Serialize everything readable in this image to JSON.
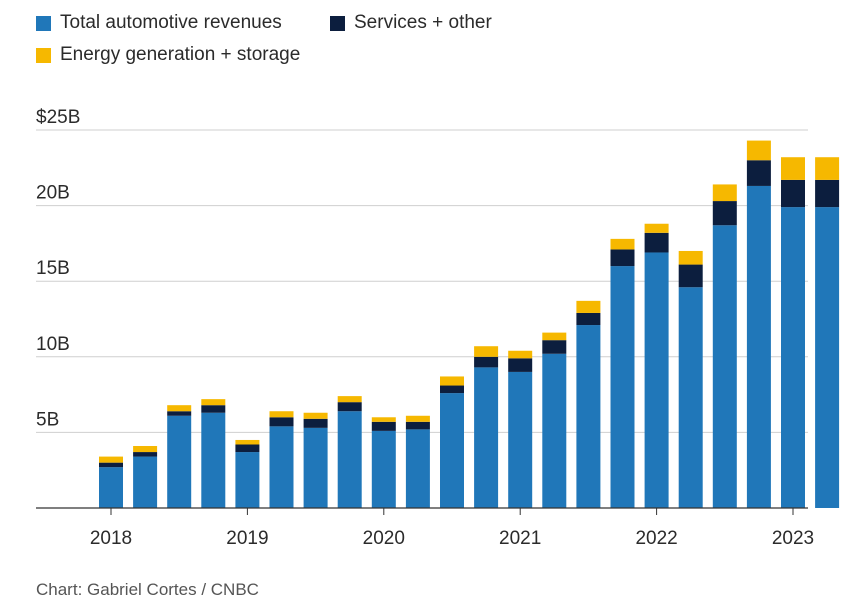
{
  "legend": [
    {
      "label": "Total automotive revenues",
      "color": "#2077b9"
    },
    {
      "label": "Services + other",
      "color": "#0c1e3e"
    },
    {
      "label": "Energy generation + storage",
      "color": "#f6b800"
    }
  ],
  "source": "Chart: Gabriel Cortes / CNBC",
  "chart_data": {
    "type": "bar",
    "stacked": true,
    "ylim": [
      0,
      25
    ],
    "yticks": [
      {
        "value": 5,
        "label": "5B"
      },
      {
        "value": 10,
        "label": "10B"
      },
      {
        "value": 15,
        "label": "15B"
      },
      {
        "value": 20,
        "label": "20B"
      },
      {
        "value": 25,
        "label": "$25B"
      }
    ],
    "xtick_labels": [
      {
        "index": 0,
        "label": "2018"
      },
      {
        "index": 4,
        "label": "2019"
      },
      {
        "index": 8,
        "label": "2020"
      },
      {
        "index": 12,
        "label": "2021"
      },
      {
        "index": 16,
        "label": "2022"
      },
      {
        "index": 20,
        "label": "2023"
      }
    ],
    "categories": [
      "Q1 2018",
      "Q2 2018",
      "Q3 2018",
      "Q4 2018",
      "Q1 2019",
      "Q2 2019",
      "Q3 2019",
      "Q4 2019",
      "Q1 2020",
      "Q2 2020",
      "Q3 2020",
      "Q4 2020",
      "Q1 2021",
      "Q2 2021",
      "Q3 2021",
      "Q4 2021",
      "Q1 2022",
      "Q2 2022",
      "Q3 2022",
      "Q4 2022",
      "Q1 2023",
      "Q2 2023"
    ],
    "series": [
      {
        "name": "Total automotive revenues",
        "color": "#2077b9",
        "values": [
          2.7,
          3.4,
          6.1,
          6.3,
          3.7,
          5.4,
          5.3,
          6.4,
          5.1,
          5.2,
          7.6,
          9.3,
          9.0,
          10.2,
          12.1,
          16.0,
          16.9,
          14.6,
          18.7,
          21.3,
          19.9,
          19.9
        ]
      },
      {
        "name": "Services + other",
        "color": "#0c1e3e",
        "values": [
          0.3,
          0.3,
          0.3,
          0.5,
          0.5,
          0.6,
          0.6,
          0.6,
          0.6,
          0.5,
          0.5,
          0.7,
          0.9,
          0.9,
          0.8,
          1.1,
          1.3,
          1.5,
          1.6,
          1.7,
          1.8,
          1.8
        ]
      },
      {
        "name": "Energy generation + storage",
        "color": "#f6b800",
        "values": [
          0.4,
          0.4,
          0.4,
          0.4,
          0.3,
          0.4,
          0.4,
          0.4,
          0.3,
          0.4,
          0.6,
          0.7,
          0.5,
          0.5,
          0.8,
          0.7,
          0.6,
          0.9,
          1.1,
          1.3,
          1.5,
          1.5
        ]
      }
    ]
  }
}
